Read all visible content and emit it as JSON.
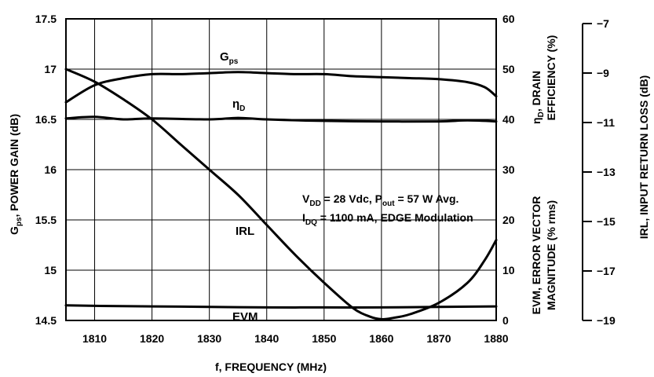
{
  "chart_data": {
    "type": "line",
    "x_axis": {
      "label": "f, FREQUENCY (MHz)",
      "range": [
        1805,
        1880
      ],
      "ticks": [
        1810,
        1820,
        1830,
        1840,
        1850,
        1860,
        1870,
        1880
      ]
    },
    "y_axes": {
      "left": {
        "symbol": "G",
        "symbol_sub": "ps",
        "label_rest": ", POWER GAIN (dB)",
        "range": [
          14.5,
          17.5
        ],
        "ticks": [
          "14.5",
          "15",
          "15.5",
          "16",
          "16.5",
          "17",
          "17.5"
        ]
      },
      "right1": {
        "line1_symbol": "η",
        "line1_sub": "D",
        "line1_rest": ", DRAIN",
        "line2": "EFFICIENCY (%)",
        "line3": "EVM, ERROR VECTOR",
        "line4": "MAGNITUDE (% rms)",
        "range": [
          0,
          60
        ],
        "ticks": [
          "0",
          "10",
          "20",
          "30",
          "40",
          "50",
          "60"
        ]
      },
      "right2": {
        "label": "IRL, INPUT RETURN LOSS (dB)",
        "range": [
          -19,
          -7
        ],
        "ticks": [
          "−19",
          "−17",
          "−15",
          "−13",
          "−11",
          "−9",
          "−7"
        ]
      }
    },
    "grid": true,
    "series": [
      {
        "name": "Gps",
        "axis": "left",
        "x": [
          1805,
          1810,
          1815,
          1820,
          1825,
          1830,
          1835,
          1840,
          1845,
          1850,
          1855,
          1860,
          1865,
          1870,
          1875,
          1878,
          1880
        ],
        "y": [
          16.67,
          16.84,
          16.91,
          16.95,
          16.95,
          16.96,
          16.97,
          16.96,
          16.95,
          16.95,
          16.93,
          16.92,
          16.91,
          16.9,
          16.87,
          16.82,
          16.73
        ]
      },
      {
        "name": "ηD",
        "axis": "right1",
        "x": [
          1805,
          1810,
          1815,
          1820,
          1830,
          1835,
          1840,
          1850,
          1860,
          1870,
          1875,
          1880
        ],
        "y": [
          40.2,
          40.5,
          40.0,
          40.2,
          40.0,
          40.3,
          40.0,
          39.7,
          39.6,
          39.6,
          39.8,
          39.6
        ]
      },
      {
        "name": "IRL",
        "axis": "right2",
        "x": [
          1805,
          1810,
          1815,
          1820,
          1825,
          1830,
          1835,
          1840,
          1845,
          1850,
          1855,
          1858,
          1860,
          1862,
          1865,
          1870,
          1875,
          1878,
          1880
        ],
        "y": [
          -9.0,
          -9.5,
          -10.2,
          -11.0,
          -12.0,
          -13.0,
          -14.0,
          -15.2,
          -16.4,
          -17.5,
          -18.5,
          -18.85,
          -18.95,
          -18.9,
          -18.75,
          -18.3,
          -17.5,
          -16.6,
          -15.8
        ]
      },
      {
        "name": "EVM",
        "axis": "right1",
        "x": [
          1805,
          1810,
          1820,
          1830,
          1840,
          1850,
          1860,
          1870,
          1880
        ],
        "y": [
          3.0,
          2.9,
          2.8,
          2.7,
          2.6,
          2.6,
          2.6,
          2.7,
          2.8
        ]
      }
    ],
    "series_labels": {
      "gps": {
        "main": "G",
        "sub": "ps"
      },
      "eta": {
        "main": "η",
        "sub": "D"
      },
      "irl": "IRL",
      "evm": "EVM"
    },
    "annotation": {
      "line1": {
        "a": "V",
        "a_sub": "DD",
        "b": " = 28 Vdc, P",
        "b_sub": "out",
        "c": " = 57 W Avg."
      },
      "line2": {
        "a": "I",
        "a_sub": "DQ",
        "b": " = 1100 mA, EDGE Modulation"
      }
    }
  }
}
